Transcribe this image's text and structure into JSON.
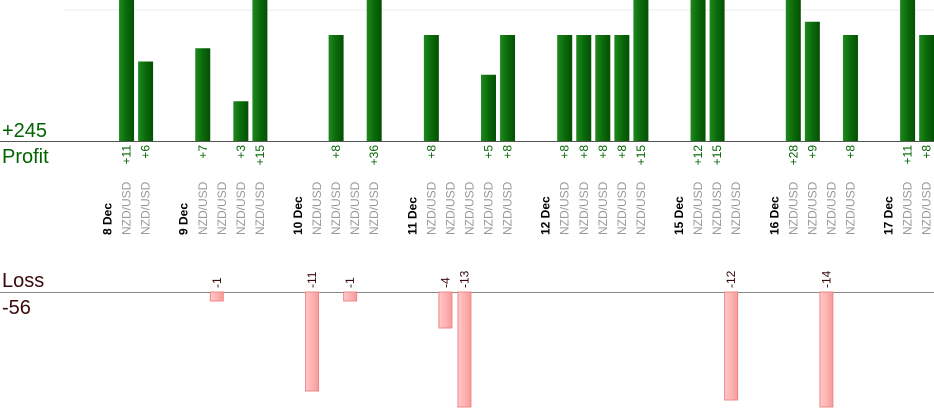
{
  "summary": {
    "profit_total": "+245",
    "profit_label": "Profit",
    "loss_label": "Loss",
    "loss_total": "-56"
  },
  "colors": {
    "profit_bar": "#0a6a0a",
    "loss_bar": "#ffb3b3",
    "loss_border": "#ee8888",
    "profit_text": "#006400",
    "loss_text": "#3a0a0a",
    "date_text": "#000000",
    "pair_text": "#999999"
  },
  "chart_data": {
    "type": "bar",
    "columns": [
      {
        "kind": "date",
        "label": "8 Dec"
      },
      {
        "kind": "trade",
        "label": "NZD/USD",
        "value": 11,
        "value_label": "+11"
      },
      {
        "kind": "trade",
        "label": "NZD/USD",
        "value": 6,
        "value_label": "+6"
      },
      {
        "kind": "gap"
      },
      {
        "kind": "date",
        "label": "9 Dec"
      },
      {
        "kind": "trade",
        "label": "NZD/USD",
        "value": 7,
        "value_label": "+7"
      },
      {
        "kind": "trade",
        "label": "NZD/USD",
        "value": -1,
        "value_label": "-1"
      },
      {
        "kind": "trade",
        "label": "NZD/USD",
        "value": 3,
        "value_label": "+3"
      },
      {
        "kind": "trade",
        "label": "NZD/USD",
        "value": 15,
        "value_label": "+15"
      },
      {
        "kind": "gap"
      },
      {
        "kind": "date",
        "label": "10 Dec"
      },
      {
        "kind": "trade",
        "label": "NZD/USD",
        "value": -11,
        "value_label": "-11"
      },
      {
        "kind": "trade",
        "label": "NZD/USD",
        "value": 8,
        "value_label": "+8"
      },
      {
        "kind": "trade",
        "label": "NZD/USD",
        "value": -1,
        "value_label": "-1"
      },
      {
        "kind": "trade",
        "label": "NZD/USD",
        "value": 36,
        "value_label": "+36"
      },
      {
        "kind": "gap"
      },
      {
        "kind": "date",
        "label": "11 Dec"
      },
      {
        "kind": "trade",
        "label": "NZD/USD",
        "value": 8,
        "value_label": "+8"
      },
      {
        "kind": "trade",
        "label": "NZD/USD",
        "value": -4,
        "value_label": "-4"
      },
      {
        "kind": "trade",
        "label": "NZD/USD",
        "value": -13,
        "value_label": "-13"
      },
      {
        "kind": "trade",
        "label": "NZD/USD",
        "value": 5,
        "value_label": "+5"
      },
      {
        "kind": "trade",
        "label": "NZD/USD",
        "value": 8,
        "value_label": "+8"
      },
      {
        "kind": "gap"
      },
      {
        "kind": "date",
        "label": "12 Dec"
      },
      {
        "kind": "trade",
        "label": "NZD/USD",
        "value": 8,
        "value_label": "+8"
      },
      {
        "kind": "trade",
        "label": "NZD/USD",
        "value": 8,
        "value_label": "+8"
      },
      {
        "kind": "trade",
        "label": "NZD/USD",
        "value": 8,
        "value_label": "+8"
      },
      {
        "kind": "trade",
        "label": "NZD/USD",
        "value": 8,
        "value_label": "+8"
      },
      {
        "kind": "trade",
        "label": "NZD/USD",
        "value": 15,
        "value_label": "+15"
      },
      {
        "kind": "gap"
      },
      {
        "kind": "date",
        "label": "15 Dec"
      },
      {
        "kind": "trade",
        "label": "NZD/USD",
        "value": 12,
        "value_label": "+12"
      },
      {
        "kind": "trade",
        "label": "NZD/USD",
        "value": 15,
        "value_label": "+15"
      },
      {
        "kind": "trade",
        "label": "NZD/USD",
        "value": -12,
        "value_label": "-12"
      },
      {
        "kind": "gap"
      },
      {
        "kind": "date",
        "label": "16 Dec"
      },
      {
        "kind": "trade",
        "label": "NZD/USD",
        "value": 28,
        "value_label": "+28"
      },
      {
        "kind": "trade",
        "label": "NZD/USD",
        "value": 9,
        "value_label": "+9"
      },
      {
        "kind": "trade",
        "label": "NZD/USD",
        "value": -14,
        "value_label": "-14"
      },
      {
        "kind": "trade",
        "label": "NZD/USD",
        "value": 8,
        "value_label": "+8"
      },
      {
        "kind": "gap"
      },
      {
        "kind": "date",
        "label": "17 Dec"
      },
      {
        "kind": "trade",
        "label": "NZD/USD",
        "value": 11,
        "value_label": "+11"
      },
      {
        "kind": "trade",
        "label": "NZD/USD",
        "value": 8,
        "value_label": "+8"
      }
    ]
  }
}
